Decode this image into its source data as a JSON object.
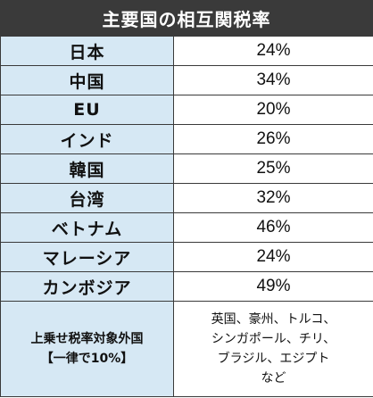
{
  "title": "主要国の相互関税率",
  "rows": [
    {
      "country": "日本",
      "rate": "24%"
    },
    {
      "country": "中国",
      "rate": "34%"
    },
    {
      "country": "EU",
      "rate": "20%"
    },
    {
      "country": "インド",
      "rate": "26%"
    },
    {
      "country": "韓国",
      "rate": "25%"
    },
    {
      "country": "台湾",
      "rate": "32%"
    },
    {
      "country": "ベトナム",
      "rate": "46%"
    },
    {
      "country": "マレーシア",
      "rate": "24%"
    },
    {
      "country": "カンボジア",
      "rate": "49%"
    }
  ],
  "footer": {
    "label_line1": "上乗せ税率対象外国",
    "label_line2": "【一律で10%】",
    "value_lines": [
      "英国、豪州、トルコ、",
      "シンガポール、チリ、",
      "ブラジル、エジプト",
      "など"
    ]
  }
}
